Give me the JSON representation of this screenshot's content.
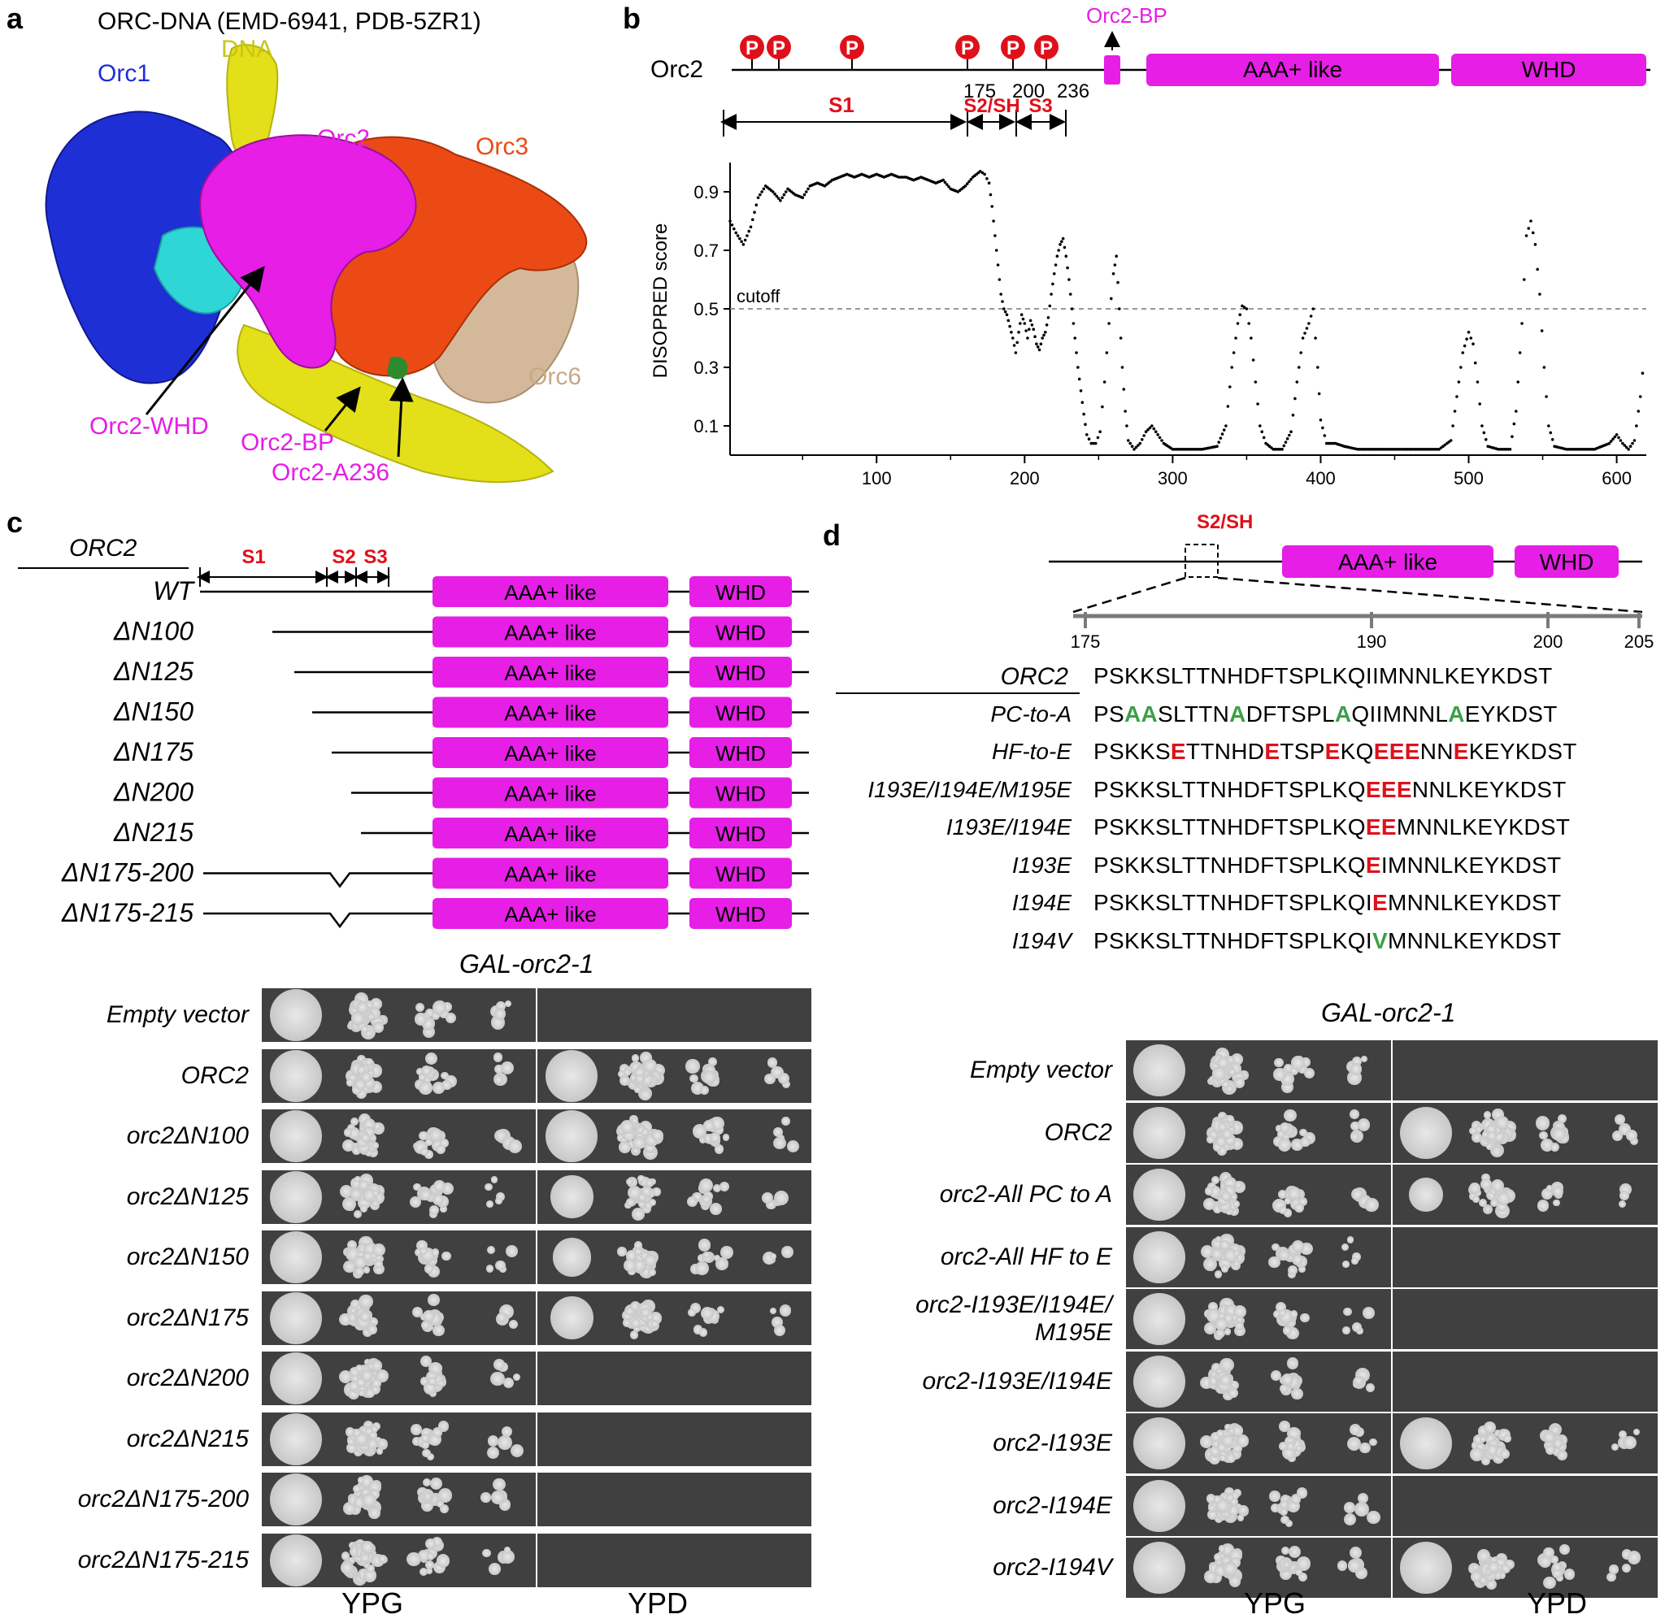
{
  "panel_a": {
    "letter": "a",
    "title": "ORC-DNA (EMD-6941, PDB-5ZR1)",
    "labels": {
      "orc1": "Orc1",
      "dna": "DNA",
      "orc2": "Orc2",
      "orc3": "Orc3",
      "orc6": "Orc6",
      "orc2_whd": "Orc2-WHD",
      "orc2_bp": "Orc2-BP",
      "orc2_a236": "Orc2-A236"
    },
    "colors": {
      "orc1": "#1f2fd6",
      "dna": "#e3e01a",
      "orc2": "#e61ee6",
      "orc3": "#ec4a14",
      "orc6": "#d3b99a",
      "cyan": "#2fd6d6",
      "green": "#2f8a2f"
    }
  },
  "panel_b": {
    "letter": "b",
    "protein": "Orc2",
    "bp_label": "Orc2-BP",
    "domains": [
      "AAA+ like",
      "WHD"
    ],
    "phospho_symbol": "P",
    "positions": [
      "175",
      "200",
      "236"
    ],
    "segments": [
      "S1",
      "S2/SH",
      "S3"
    ],
    "cutoff_label": "cutoff",
    "chart_data": {
      "type": "scatter",
      "ylabel": "DISOPRED score",
      "xlim": [
        1,
        620
      ],
      "ylim": [
        0,
        1.0
      ],
      "xticks": [
        "100",
        "200",
        "300",
        "400",
        "500",
        "600"
      ],
      "yticks": [
        "0.1",
        "0.3",
        "0.5",
        "0.7",
        "0.9"
      ],
      "cutoff": 0.5,
      "profile": [
        [
          1,
          0.8
        ],
        [
          5,
          0.76
        ],
        [
          10,
          0.72
        ],
        [
          15,
          0.78
        ],
        [
          20,
          0.88
        ],
        [
          25,
          0.92
        ],
        [
          30,
          0.9
        ],
        [
          35,
          0.87
        ],
        [
          40,
          0.91
        ],
        [
          45,
          0.89
        ],
        [
          50,
          0.88
        ],
        [
          55,
          0.92
        ],
        [
          60,
          0.93
        ],
        [
          65,
          0.92
        ],
        [
          70,
          0.94
        ],
        [
          75,
          0.95
        ],
        [
          80,
          0.96
        ],
        [
          85,
          0.95
        ],
        [
          90,
          0.96
        ],
        [
          95,
          0.95
        ],
        [
          100,
          0.96
        ],
        [
          105,
          0.95
        ],
        [
          110,
          0.96
        ],
        [
          115,
          0.95
        ],
        [
          120,
          0.95
        ],
        [
          125,
          0.94
        ],
        [
          130,
          0.95
        ],
        [
          135,
          0.94
        ],
        [
          140,
          0.93
        ],
        [
          145,
          0.94
        ],
        [
          150,
          0.91
        ],
        [
          155,
          0.9
        ],
        [
          160,
          0.92
        ],
        [
          165,
          0.95
        ],
        [
          170,
          0.97
        ],
        [
          173,
          0.96
        ],
        [
          176,
          0.93
        ],
        [
          178,
          0.85
        ],
        [
          180,
          0.75
        ],
        [
          182,
          0.65
        ],
        [
          184,
          0.55
        ],
        [
          186,
          0.5
        ],
        [
          188,
          0.48
        ],
        [
          190,
          0.44
        ],
        [
          192,
          0.4
        ],
        [
          194,
          0.35
        ],
        [
          196,
          0.42
        ],
        [
          198,
          0.48
        ],
        [
          200,
          0.45
        ],
        [
          202,
          0.4
        ],
        [
          204,
          0.46
        ],
        [
          206,
          0.43
        ],
        [
          208,
          0.38
        ],
        [
          210,
          0.36
        ],
        [
          212,
          0.4
        ],
        [
          214,
          0.42
        ],
        [
          216,
          0.47
        ],
        [
          218,
          0.55
        ],
        [
          220,
          0.62
        ],
        [
          222,
          0.68
        ],
        [
          224,
          0.72
        ],
        [
          226,
          0.74
        ],
        [
          228,
          0.68
        ],
        [
          230,
          0.6
        ],
        [
          232,
          0.5
        ],
        [
          234,
          0.4
        ],
        [
          236,
          0.3
        ],
        [
          238,
          0.22
        ],
        [
          240,
          0.14
        ],
        [
          242,
          0.07
        ],
        [
          245,
          0.04
        ],
        [
          248,
          0.04
        ],
        [
          251,
          0.08
        ],
        [
          254,
          0.25
        ],
        [
          257,
          0.45
        ],
        [
          260,
          0.62
        ],
        [
          262,
          0.68
        ],
        [
          264,
          0.5
        ],
        [
          266,
          0.3
        ],
        [
          268,
          0.15
        ],
        [
          270,
          0.05
        ],
        [
          274,
          0.02
        ],
        [
          278,
          0.04
        ],
        [
          282,
          0.08
        ],
        [
          286,
          0.1
        ],
        [
          290,
          0.07
        ],
        [
          294,
          0.04
        ],
        [
          300,
          0.02
        ],
        [
          310,
          0.02
        ],
        [
          320,
          0.02
        ],
        [
          330,
          0.03
        ],
        [
          336,
          0.1
        ],
        [
          340,
          0.3
        ],
        [
          344,
          0.45
        ],
        [
          347,
          0.51
        ],
        [
          350,
          0.5
        ],
        [
          353,
          0.4
        ],
        [
          356,
          0.25
        ],
        [
          359,
          0.1
        ],
        [
          363,
          0.04
        ],
        [
          368,
          0.02
        ],
        [
          374,
          0.02
        ],
        [
          380,
          0.08
        ],
        [
          384,
          0.25
        ],
        [
          388,
          0.4
        ],
        [
          392,
          0.45
        ],
        [
          395,
          0.5
        ],
        [
          398,
          0.3
        ],
        [
          400,
          0.12
        ],
        [
          404,
          0.04
        ],
        [
          410,
          0.04
        ],
        [
          416,
          0.03
        ],
        [
          425,
          0.02
        ],
        [
          440,
          0.02
        ],
        [
          460,
          0.02
        ],
        [
          480,
          0.02
        ],
        [
          488,
          0.05
        ],
        [
          492,
          0.2
        ],
        [
          496,
          0.35
        ],
        [
          500,
          0.42
        ],
        [
          503,
          0.38
        ],
        [
          506,
          0.25
        ],
        [
          509,
          0.1
        ],
        [
          513,
          0.03
        ],
        [
          520,
          0.02
        ],
        [
          528,
          0.02
        ],
        [
          532,
          0.15
        ],
        [
          536,
          0.45
        ],
        [
          539,
          0.75
        ],
        [
          542,
          0.8
        ],
        [
          545,
          0.72
        ],
        [
          548,
          0.55
        ],
        [
          551,
          0.3
        ],
        [
          554,
          0.1
        ],
        [
          558,
          0.03
        ],
        [
          566,
          0.02
        ],
        [
          575,
          0.02
        ],
        [
          585,
          0.02
        ],
        [
          595,
          0.04
        ],
        [
          600,
          0.07
        ],
        [
          604,
          0.04
        ],
        [
          608,
          0.02
        ],
        [
          612,
          0.05
        ],
        [
          616,
          0.2
        ],
        [
          619,
          0.36
        ]
      ]
    }
  },
  "panel_c": {
    "letter": "c",
    "header": "ORC2",
    "segments": [
      "S1",
      "S2",
      "S3"
    ],
    "domains": [
      "AAA+ like",
      "WHD"
    ],
    "constructs": [
      "WT",
      "ΔN100",
      "ΔN125",
      "ΔN150",
      "ΔN175",
      "ΔN200",
      "ΔN215",
      "ΔN175-200",
      "ΔN175-215"
    ],
    "plate_title": "GAL-orc2-1",
    "strains": [
      "Empty vector",
      "ORC2",
      "orc2ΔN100",
      "orc2ΔN125",
      "orc2ΔN150",
      "orc2ΔN175",
      "orc2ΔN200",
      "orc2ΔN215",
      "orc2ΔN175-200",
      "orc2ΔN175-215"
    ],
    "growth_ypd": [
      0,
      1,
      1,
      0.8,
      0.7,
      0.8,
      0,
      0,
      0,
      0
    ],
    "media": [
      "YPG",
      "YPD"
    ]
  },
  "panel_d": {
    "letter": "d",
    "region": "S2/SH",
    "domains": [
      "AAA+ like",
      "WHD"
    ],
    "positions": [
      "175",
      "190",
      "200",
      "205"
    ],
    "seq_header": "ORC2",
    "sequences": [
      {
        "name": "ORC2",
        "seq": "PSKKSLTTNHDFTSPLKQIIMNNLKEYKDST"
      },
      {
        "name": "PC-to-A",
        "seq": "PSAASLTTNADFTSPLAQIIMNNLAEYKDST"
      },
      {
        "name": "HF-to-E",
        "seq": "PSKKSETTNHDETSPEKQEEENNEKEYKDST"
      },
      {
        "name": "I193E/I194E/M195E",
        "seq": "PSKKSLTTNHDFTSPLKQEEENNLKEYKDST"
      },
      {
        "name": "I193E/I194E",
        "seq": "PSKKSLTTNHDFTSPLKQEEMNNLKEYKDST"
      },
      {
        "name": "I193E",
        "seq": "PSKKSLTTNHDFTSPLKQEIMNNLKEYKDST"
      },
      {
        "name": "I194E",
        "seq": "PSKKSLTTNHDFTSPLKQIEMNNLKEYKDST"
      },
      {
        "name": "I194V",
        "seq": "PSKKSLTTNHDFTSPLKQIVMNNLKEYKDST"
      }
    ],
    "plate_title": "GAL-orc2-1",
    "strains": [
      "Empty vector",
      "ORC2",
      "orc2-All PC to A",
      "orc2-All HF to E",
      "orc2-I193E/I194E/\nM195E",
      "orc2-I193E/I194E",
      "orc2-I193E",
      "orc2-I194E",
      "orc2-I194V"
    ],
    "growth_ypd": [
      0,
      1,
      0.6,
      0,
      0,
      0,
      1,
      0,
      1
    ],
    "media": [
      "YPG",
      "YPD"
    ]
  }
}
